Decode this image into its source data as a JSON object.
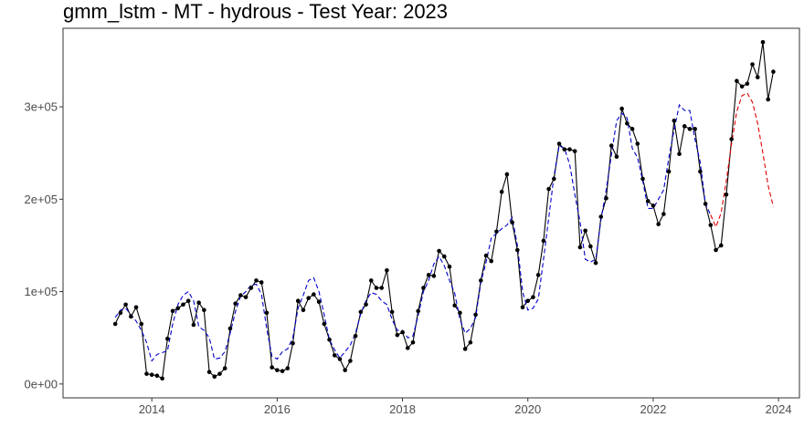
{
  "chart_data": {
    "type": "line",
    "title": "gmm_lstm - MT - hydrous - Test Year: 2023",
    "xlabel": "",
    "ylabel": "",
    "x_ticks": [
      "2014",
      "2016",
      "2018",
      "2020",
      "2022",
      "2024"
    ],
    "y_ticks": [
      "0e+00",
      "1e+05",
      "2e+05",
      "3e+05"
    ],
    "ylim": [
      -15000,
      385000
    ],
    "xlim": [
      "2012-08",
      "2024-05"
    ],
    "grid": false,
    "legend": "none",
    "series": [
      {
        "role": "actual",
        "color": "#000000",
        "style": "solid-with-points",
        "points": [
          [
            "2013-06",
            65000
          ],
          [
            "2013-07",
            77000
          ],
          [
            "2013-08",
            86000
          ],
          [
            "2013-09",
            73000
          ],
          [
            "2013-10",
            83000
          ],
          [
            "2013-11",
            65000
          ],
          [
            "2013-12",
            11000
          ],
          [
            "2014-01",
            10000
          ],
          [
            "2014-02",
            9000
          ],
          [
            "2014-03",
            6000
          ],
          [
            "2014-04",
            49000
          ],
          [
            "2014-05",
            79000
          ],
          [
            "2014-06",
            82000
          ],
          [
            "2014-07",
            86000
          ],
          [
            "2014-08",
            90000
          ],
          [
            "2014-09",
            64000
          ],
          [
            "2014-10",
            88000
          ],
          [
            "2014-11",
            80000
          ],
          [
            "2014-12",
            13000
          ],
          [
            "2015-01",
            8000
          ],
          [
            "2015-02",
            11000
          ],
          [
            "2015-03",
            17000
          ],
          [
            "2015-04",
            60000
          ],
          [
            "2015-05",
            87000
          ],
          [
            "2015-06",
            96000
          ],
          [
            "2015-07",
            94000
          ],
          [
            "2015-08",
            104000
          ],
          [
            "2015-09",
            112000
          ],
          [
            "2015-10",
            110000
          ],
          [
            "2015-11",
            77000
          ],
          [
            "2015-12",
            18000
          ],
          [
            "2016-01",
            15000
          ],
          [
            "2016-02",
            14000
          ],
          [
            "2016-03",
            17000
          ],
          [
            "2016-04",
            44000
          ],
          [
            "2016-05",
            90000
          ],
          [
            "2016-06",
            80000
          ],
          [
            "2016-07",
            93000
          ],
          [
            "2016-08",
            97000
          ],
          [
            "2016-09",
            89000
          ],
          [
            "2016-10",
            65000
          ],
          [
            "2016-11",
            48000
          ],
          [
            "2016-12",
            31000
          ],
          [
            "2017-01",
            27000
          ],
          [
            "2017-02",
            15000
          ],
          [
            "2017-03",
            25000
          ],
          [
            "2017-04",
            52000
          ],
          [
            "2017-05",
            78000
          ],
          [
            "2017-06",
            86000
          ],
          [
            "2017-07",
            112000
          ],
          [
            "2017-08",
            104000
          ],
          [
            "2017-09",
            104000
          ],
          [
            "2017-10",
            123000
          ],
          [
            "2017-11",
            78000
          ],
          [
            "2017-12",
            53000
          ],
          [
            "2018-01",
            56000
          ],
          [
            "2018-02",
            39000
          ],
          [
            "2018-03",
            45000
          ],
          [
            "2018-04",
            79000
          ],
          [
            "2018-05",
            104000
          ],
          [
            "2018-06",
            118000
          ],
          [
            "2018-07",
            117000
          ],
          [
            "2018-08",
            144000
          ],
          [
            "2018-09",
            138000
          ],
          [
            "2018-10",
            127000
          ],
          [
            "2018-11",
            85000
          ],
          [
            "2018-12",
            77000
          ],
          [
            "2019-01",
            38000
          ],
          [
            "2019-02",
            45000
          ],
          [
            "2019-03",
            75000
          ],
          [
            "2019-04",
            112000
          ],
          [
            "2019-05",
            139000
          ],
          [
            "2019-06",
            133000
          ],
          [
            "2019-07",
            165000
          ],
          [
            "2019-08",
            208000
          ],
          [
            "2019-09",
            227000
          ],
          [
            "2019-10",
            175000
          ],
          [
            "2019-11",
            145000
          ],
          [
            "2019-12",
            83000
          ],
          [
            "2020-01",
            90000
          ],
          [
            "2020-02",
            94000
          ],
          [
            "2020-03",
            118000
          ],
          [
            "2020-04",
            155000
          ],
          [
            "2020-05",
            211000
          ],
          [
            "2020-06",
            222000
          ],
          [
            "2020-07",
            260000
          ],
          [
            "2020-08",
            254000
          ],
          [
            "2020-09",
            254000
          ],
          [
            "2020-10",
            252000
          ],
          [
            "2020-11",
            148000
          ],
          [
            "2020-12",
            166000
          ],
          [
            "2021-01",
            149000
          ],
          [
            "2021-02",
            131000
          ],
          [
            "2021-03",
            181000
          ],
          [
            "2021-04",
            201000
          ],
          [
            "2021-05",
            258000
          ],
          [
            "2021-06",
            246000
          ],
          [
            "2021-07",
            298000
          ],
          [
            "2021-08",
            282000
          ],
          [
            "2021-09",
            276000
          ],
          [
            "2021-10",
            260000
          ],
          [
            "2021-11",
            222000
          ],
          [
            "2021-12",
            198000
          ],
          [
            "2022-01",
            193000
          ],
          [
            "2022-02",
            173000
          ],
          [
            "2022-03",
            184000
          ],
          [
            "2022-04",
            230000
          ],
          [
            "2022-05",
            285000
          ],
          [
            "2022-06",
            249000
          ],
          [
            "2022-07",
            279000
          ],
          [
            "2022-08",
            276000
          ],
          [
            "2022-09",
            276000
          ],
          [
            "2022-10",
            230000
          ],
          [
            "2022-11",
            195000
          ],
          [
            "2022-12",
            172000
          ],
          [
            "2023-01",
            145000
          ],
          [
            "2023-02",
            150000
          ],
          [
            "2023-03",
            205000
          ],
          [
            "2023-04",
            265000
          ],
          [
            "2023-05",
            328000
          ],
          [
            "2023-06",
            322000
          ],
          [
            "2023-07",
            325000
          ],
          [
            "2023-08",
            346000
          ],
          [
            "2023-09",
            332000
          ],
          [
            "2023-10",
            370000
          ],
          [
            "2023-11",
            308000
          ],
          [
            "2023-12",
            338000
          ]
        ]
      },
      {
        "role": "fitted",
        "color": "#0000cc",
        "style": "dashed",
        "points": [
          [
            "2013-06",
            72000
          ],
          [
            "2013-07",
            80000
          ],
          [
            "2013-08",
            82000
          ],
          [
            "2013-09",
            75000
          ],
          [
            "2013-10",
            68000
          ],
          [
            "2013-11",
            58000
          ],
          [
            "2013-12",
            45000
          ],
          [
            "2014-01",
            25000
          ],
          [
            "2014-02",
            32000
          ],
          [
            "2014-03",
            34000
          ],
          [
            "2014-04",
            36000
          ],
          [
            "2014-05",
            65000
          ],
          [
            "2014-06",
            86000
          ],
          [
            "2014-07",
            96000
          ],
          [
            "2014-08",
            100000
          ],
          [
            "2014-09",
            90000
          ],
          [
            "2014-10",
            62000
          ],
          [
            "2014-11",
            58000
          ],
          [
            "2014-12",
            50000
          ],
          [
            "2015-01",
            27000
          ],
          [
            "2015-02",
            28000
          ],
          [
            "2015-03",
            35000
          ],
          [
            "2015-04",
            55000
          ],
          [
            "2015-05",
            78000
          ],
          [
            "2015-06",
            95000
          ],
          [
            "2015-07",
            100000
          ],
          [
            "2015-08",
            107000
          ],
          [
            "2015-09",
            108000
          ],
          [
            "2015-10",
            97000
          ],
          [
            "2015-11",
            60000
          ],
          [
            "2015-12",
            30000
          ],
          [
            "2016-01",
            27000
          ],
          [
            "2016-02",
            35000
          ],
          [
            "2016-03",
            38000
          ],
          [
            "2016-04",
            50000
          ],
          [
            "2016-05",
            82000
          ],
          [
            "2016-06",
            96000
          ],
          [
            "2016-07",
            112000
          ],
          [
            "2016-08",
            115000
          ],
          [
            "2016-09",
            100000
          ],
          [
            "2016-10",
            75000
          ],
          [
            "2016-11",
            48000
          ],
          [
            "2016-12",
            37000
          ],
          [
            "2017-01",
            28000
          ],
          [
            "2017-02",
            35000
          ],
          [
            "2017-03",
            42000
          ],
          [
            "2017-04",
            55000
          ],
          [
            "2017-05",
            76000
          ],
          [
            "2017-06",
            90000
          ],
          [
            "2017-07",
            99000
          ],
          [
            "2017-08",
            97000
          ],
          [
            "2017-09",
            90000
          ],
          [
            "2017-10",
            86000
          ],
          [
            "2017-11",
            70000
          ],
          [
            "2017-12",
            58000
          ],
          [
            "2018-01",
            58000
          ],
          [
            "2018-02",
            50000
          ],
          [
            "2018-03",
            52000
          ],
          [
            "2018-04",
            74000
          ],
          [
            "2018-05",
            100000
          ],
          [
            "2018-06",
            112000
          ],
          [
            "2018-07",
            130000
          ],
          [
            "2018-08",
            138000
          ],
          [
            "2018-09",
            128000
          ],
          [
            "2018-10",
            112000
          ],
          [
            "2018-11",
            98000
          ],
          [
            "2018-12",
            70000
          ],
          [
            "2019-01",
            55000
          ],
          [
            "2019-02",
            60000
          ],
          [
            "2019-03",
            72000
          ],
          [
            "2019-04",
            110000
          ],
          [
            "2019-05",
            132000
          ],
          [
            "2019-06",
            158000
          ],
          [
            "2019-07",
            163000
          ],
          [
            "2019-08",
            168000
          ],
          [
            "2019-09",
            172000
          ],
          [
            "2019-10",
            180000
          ],
          [
            "2019-11",
            150000
          ],
          [
            "2019-12",
            100000
          ],
          [
            "2020-01",
            80000
          ],
          [
            "2020-02",
            82000
          ],
          [
            "2020-03",
            92000
          ],
          [
            "2020-04",
            135000
          ],
          [
            "2020-05",
            180000
          ],
          [
            "2020-06",
            225000
          ],
          [
            "2020-07",
            258000
          ],
          [
            "2020-08",
            255000
          ],
          [
            "2020-09",
            238000
          ],
          [
            "2020-10",
            205000
          ],
          [
            "2020-11",
            175000
          ],
          [
            "2020-12",
            135000
          ],
          [
            "2021-01",
            132000
          ],
          [
            "2021-02",
            135000
          ],
          [
            "2021-03",
            178000
          ],
          [
            "2021-04",
            210000
          ],
          [
            "2021-05",
            248000
          ],
          [
            "2021-06",
            285000
          ],
          [
            "2021-07",
            293000
          ],
          [
            "2021-08",
            288000
          ],
          [
            "2021-09",
            255000
          ],
          [
            "2021-10",
            245000
          ],
          [
            "2021-11",
            220000
          ],
          [
            "2021-12",
            190000
          ],
          [
            "2022-01",
            190000
          ],
          [
            "2022-02",
            200000
          ],
          [
            "2022-03",
            210000
          ],
          [
            "2022-04",
            245000
          ],
          [
            "2022-05",
            275000
          ],
          [
            "2022-06",
            302000
          ],
          [
            "2022-07",
            296000
          ],
          [
            "2022-08",
            296000
          ],
          [
            "2022-09",
            265000
          ],
          [
            "2022-10",
            240000
          ],
          [
            "2022-11",
            195000
          ],
          [
            "2022-12",
            183000
          ]
        ]
      },
      {
        "role": "forecast",
        "color": "#e00000",
        "style": "dashed",
        "points": [
          [
            "2022-12",
            183000
          ],
          [
            "2023-01",
            170000
          ],
          [
            "2023-02",
            185000
          ],
          [
            "2023-03",
            220000
          ],
          [
            "2023-04",
            260000
          ],
          [
            "2023-05",
            295000
          ],
          [
            "2023-06",
            312000
          ],
          [
            "2023-07",
            315000
          ],
          [
            "2023-08",
            305000
          ],
          [
            "2023-09",
            282000
          ],
          [
            "2023-10",
            250000
          ],
          [
            "2023-11",
            215000
          ],
          [
            "2023-12",
            192000
          ]
        ]
      }
    ]
  }
}
